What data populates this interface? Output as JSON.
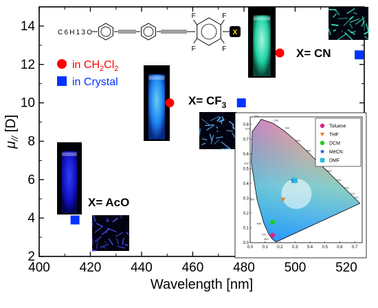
{
  "chart_data": {
    "type": "scatter",
    "title": "",
    "xlabel": "Wavelength [nm]",
    "ylabel": "μ// [D]",
    "xlim": [
      400,
      527
    ],
    "ylim": [
      2,
      15
    ],
    "x_ticks": [
      400,
      420,
      440,
      460,
      480,
      500,
      520
    ],
    "y_ticks": [
      2,
      4,
      6,
      8,
      10,
      12,
      14
    ],
    "series": [
      {
        "name": "in CH2Cl2",
        "marker": "circle",
        "color": "#ff0000",
        "points": [
          {
            "x": 451,
            "y": 10.0,
            "label": "X= CF3"
          },
          {
            "x": 494,
            "y": 12.6,
            "label": "X= CN"
          }
        ]
      },
      {
        "name": "in Crystal",
        "marker": "square",
        "color": "#0033ff",
        "points": [
          {
            "x": 414,
            "y": 3.9,
            "label": "X= AcO"
          },
          {
            "x": 479,
            "y": 10.0,
            "label": "X= CF3"
          },
          {
            "x": 525,
            "y": 12.5,
            "label": "X= CN"
          }
        ]
      }
    ],
    "legend_position": "upper-left",
    "annotations": [
      "X= AcO",
      "X= CF3",
      "X= CN"
    ],
    "structure": {
      "substituent": "C6H13O",
      "fluorine": "F",
      "x_label": "X"
    },
    "inset": {
      "type": "scatter",
      "xlim": [
        0.0,
        0.75
      ],
      "ylim": [
        0.0,
        0.85
      ],
      "x_ticks": [
        "0.0",
        "0.1",
        "0.2",
        "0.3",
        "0.4",
        "0.5",
        "0.6",
        "0.7"
      ],
      "y_ticks": [
        "0.0",
        "0.1",
        "0.2",
        "0.3",
        "0.4",
        "0.5",
        "0.6",
        "0.7",
        "0.8"
      ],
      "wavelength_labels": [
        "460",
        "470",
        "480",
        "490",
        "500",
        "510",
        "520",
        "530",
        "540",
        "550",
        "560",
        "570",
        "580",
        "590",
        "600",
        "610",
        "620"
      ],
      "series": [
        {
          "name": "Toluene",
          "marker": "circle",
          "color": "#e0218a",
          "x": 0.15,
          "y": 0.05
        },
        {
          "name": "THF",
          "marker": "triangle",
          "color": "#e08030",
          "x": 0.22,
          "y": 0.29
        },
        {
          "name": "DCM",
          "marker": "circle",
          "color": "#22cc22",
          "x": 0.15,
          "y": 0.14
        },
        {
          "name": "MeCN",
          "marker": "star",
          "color": "#2244dd",
          "x": 0.29,
          "y": 0.42
        },
        {
          "name": "DMF",
          "marker": "square",
          "color": "#22bbdd",
          "x": 0.3,
          "y": 0.42
        }
      ]
    }
  }
}
